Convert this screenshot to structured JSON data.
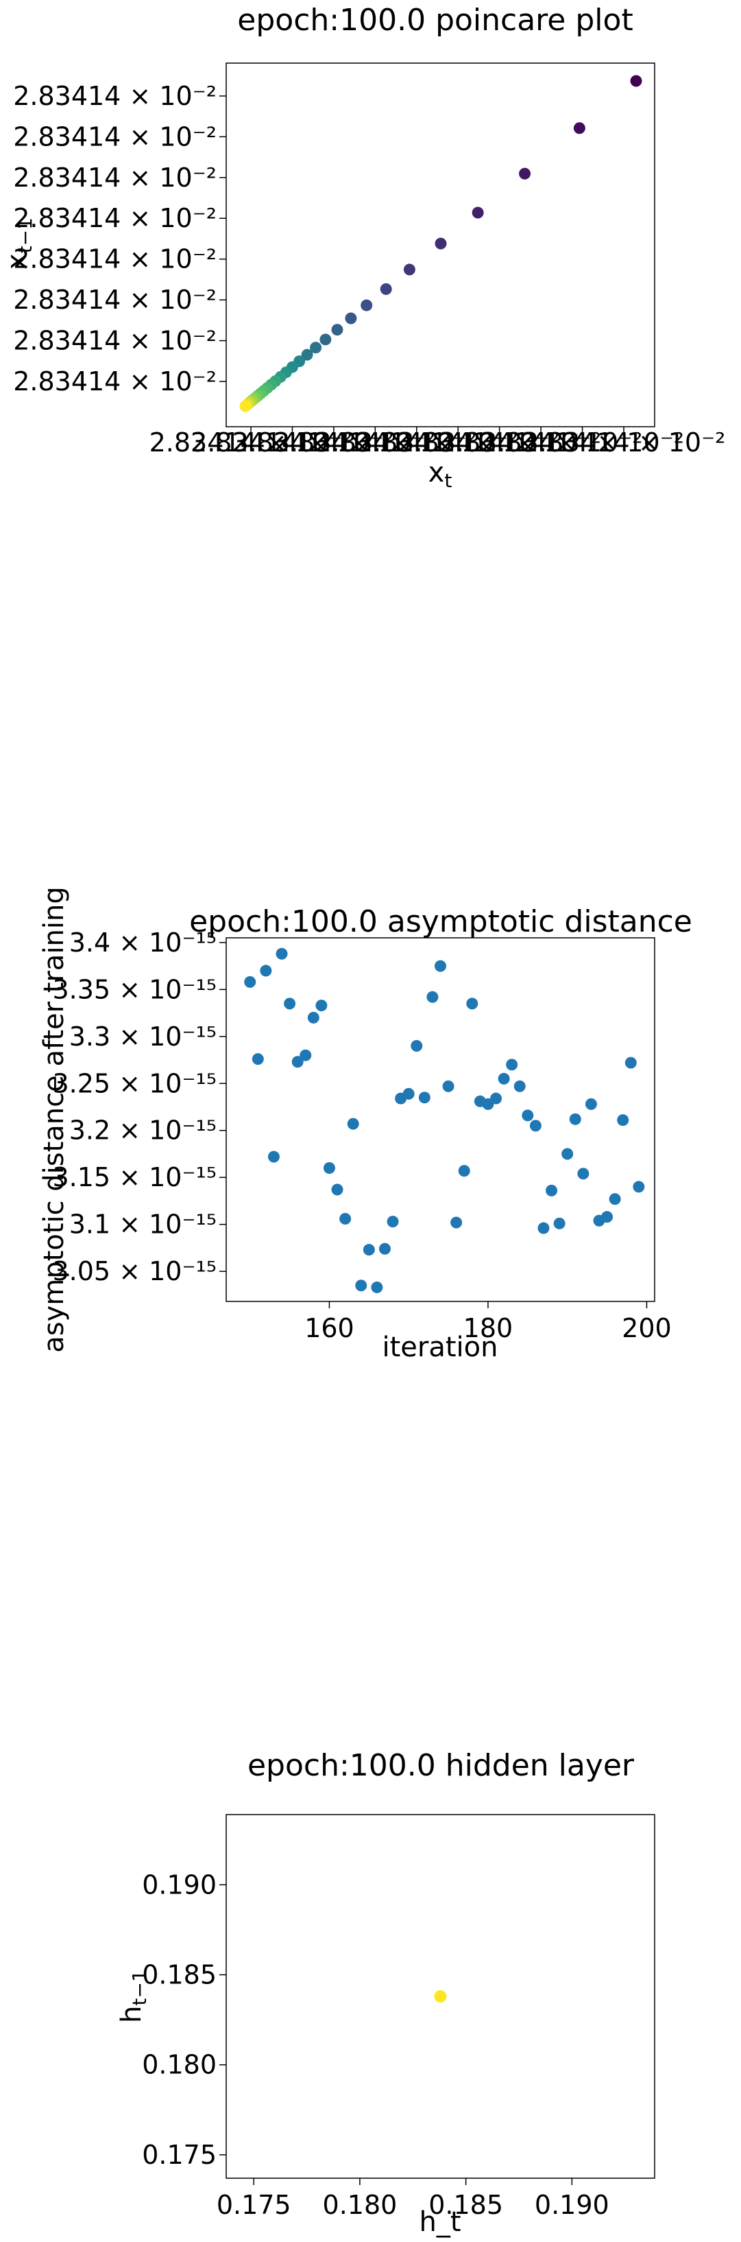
{
  "chart_data": [
    {
      "type": "scatter",
      "title": "epoch:100.0 poincare plot",
      "xlabel": "x_t",
      "ylabel": "x_{t-1}",
      "colormap": "viridis",
      "ytick_labels": [
        "2.83414 × 10⁻²",
        "2.83414 × 10⁻²",
        "2.83414 × 10⁻²",
        "2.83414 × 10⁻²",
        "2.83414 × 10⁻²",
        "2.83414 × 10⁻²",
        "2.83414 × 10⁻²",
        "2.83414 × 10⁻²"
      ],
      "xtick_labels": [
        "2.83414 × 10⁻²",
        "2.83414 × 10⁻²",
        "2.83414 × 10⁻²",
        "2.83414 × 10⁻²",
        "2.83414 × 10⁻²",
        "2.83414 × 10⁻²",
        "2.83414 × 10⁻²",
        "2.83414 × 10⁻²",
        "2.83414 × 10⁻²",
        "2.83414 × 10⁻²"
      ],
      "points_relative": {
        "note_units": "relative offset from minimum, normalized 0-1 (values indistinguishable at printed precision)",
        "t": [
          1.0,
          0.855,
          0.715,
          0.595,
          0.5,
          0.42,
          0.36,
          0.31,
          0.27,
          0.235,
          0.205,
          0.18,
          0.158,
          0.138,
          0.12,
          0.104,
          0.09,
          0.077,
          0.066,
          0.056,
          0.047,
          0.039,
          0.032,
          0.026,
          0.02,
          0.015,
          0.011,
          0.007,
          0.004,
          0.0
        ],
        "color_rank": [
          0,
          0.03,
          0.07,
          0.1,
          0.14,
          0.17,
          0.21,
          0.24,
          0.28,
          0.31,
          0.34,
          0.38,
          0.41,
          0.45,
          0.48,
          0.52,
          0.55,
          0.59,
          0.62,
          0.66,
          0.69,
          0.72,
          0.76,
          0.79,
          0.83,
          0.86,
          0.9,
          0.93,
          0.97,
          1.0
        ]
      }
    },
    {
      "type": "scatter",
      "title": "epoch:100.0 asymptotic distance",
      "xlabel": "iteration",
      "ylabel": "asymptotic distance after training",
      "xlim": [
        147,
        201
      ],
      "ylim": [
        3.018,
        3.405
      ],
      "y_unit_exponent": -15,
      "xticks": [
        160,
        180,
        200
      ],
      "yticks": [
        3.05,
        3.1,
        3.15,
        3.2,
        3.25,
        3.3,
        3.35,
        3.4
      ],
      "ytick_labels": [
        "3.05 × 10⁻¹⁵",
        "3.1 × 10⁻¹⁵",
        "3.15 × 10⁻¹⁵",
        "3.2 × 10⁻¹⁵",
        "3.25 × 10⁻¹⁵",
        "3.3 × 10⁻¹⁵",
        "3.35 × 10⁻¹⁵",
        "3.4 × 10⁻¹⁵"
      ],
      "color": "#1f77b4",
      "x": [
        150,
        151,
        152,
        153,
        154,
        155,
        156,
        157,
        158,
        159,
        160,
        161,
        162,
        163,
        164,
        165,
        166,
        167,
        168,
        169,
        170,
        171,
        172,
        173,
        174,
        175,
        176,
        177,
        178,
        179,
        180,
        181,
        182,
        183,
        184,
        185,
        186,
        187,
        188,
        189,
        190,
        191,
        192,
        193,
        194,
        195,
        196,
        197,
        198,
        199
      ],
      "y": [
        3.358,
        3.276,
        3.37,
        3.172,
        3.388,
        3.335,
        3.273,
        3.28,
        3.32,
        3.333,
        3.16,
        3.137,
        3.106,
        3.207,
        3.035,
        3.073,
        3.033,
        3.074,
        3.103,
        3.234,
        3.239,
        3.29,
        3.235,
        3.342,
        3.375,
        3.247,
        3.102,
        3.157,
        3.335,
        3.231,
        3.228,
        3.234,
        3.255,
        3.27,
        3.247,
        3.216,
        3.205,
        3.096,
        3.136,
        3.101,
        3.175,
        3.212,
        3.154,
        3.228,
        3.104,
        3.108,
        3.127,
        3.211,
        3.272,
        3.14
      ]
    },
    {
      "type": "scatter",
      "title": "epoch:100.0 hidden layer",
      "xlabel": "h_t",
      "ylabel": "h_{t-1}",
      "xlim": [
        0.1737,
        0.1939
      ],
      "ylim": [
        0.1737,
        0.1939
      ],
      "xticks": [
        0.175,
        0.18,
        0.185,
        0.19
      ],
      "yticks": [
        0.175,
        0.18,
        0.185,
        0.19
      ],
      "xtick_labels": [
        "0.175",
        "0.180",
        "0.185",
        "0.190"
      ],
      "ytick_labels": [
        "0.175",
        "0.180",
        "0.185",
        "0.190"
      ],
      "color": "#fde725",
      "x": [
        0.1838
      ],
      "y": [
        0.1838
      ]
    }
  ]
}
